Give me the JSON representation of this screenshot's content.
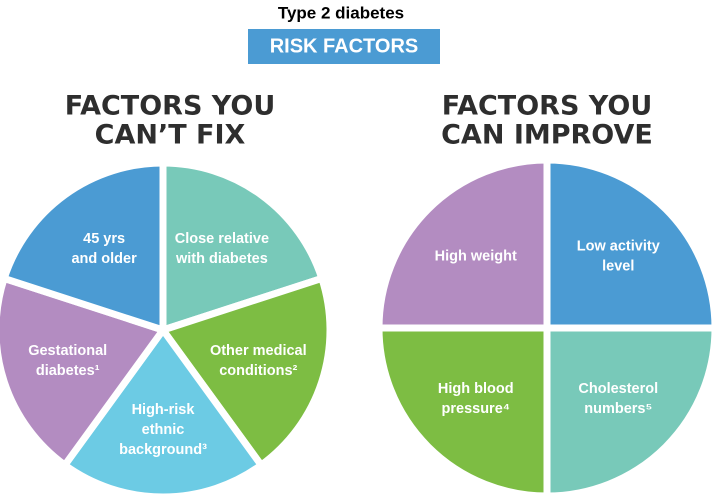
{
  "header": {
    "title": "Type 2 diabetes",
    "badge": "RISK FACTORS"
  },
  "panels": [
    {
      "heading": [
        "FACTORS YOU",
        "CAN’T FIX"
      ],
      "slices": [
        {
          "label": [
            "Close relative",
            "with diabetes"
          ],
          "color": "#78c9b9"
        },
        {
          "label": [
            "Other medical",
            "conditions²"
          ],
          "color": "#7dbd43"
        },
        {
          "label": [
            "High-risk",
            "ethnic",
            "background³"
          ],
          "color": "#6ccbe4"
        },
        {
          "label": [
            "Gestational",
            "diabetes¹"
          ],
          "color": "#b38cc1"
        },
        {
          "label": [
            "45 yrs",
            "and older"
          ],
          "color": "#4b9bd3"
        }
      ]
    },
    {
      "heading": [
        "FACTORS YOU",
        "CAN IMPROVE"
      ],
      "slices": [
        {
          "label": [
            "Low activity",
            "level"
          ],
          "color": "#4b9bd3"
        },
        {
          "label": [
            "Cholesterol",
            "numbers⁵"
          ],
          "color": "#78c9b9"
        },
        {
          "label": [
            "High blood",
            "pressure⁴"
          ],
          "color": "#7dbd43"
        },
        {
          "label": [
            "High weight"
          ],
          "color": "#b38cc1"
        }
      ]
    }
  ]
}
